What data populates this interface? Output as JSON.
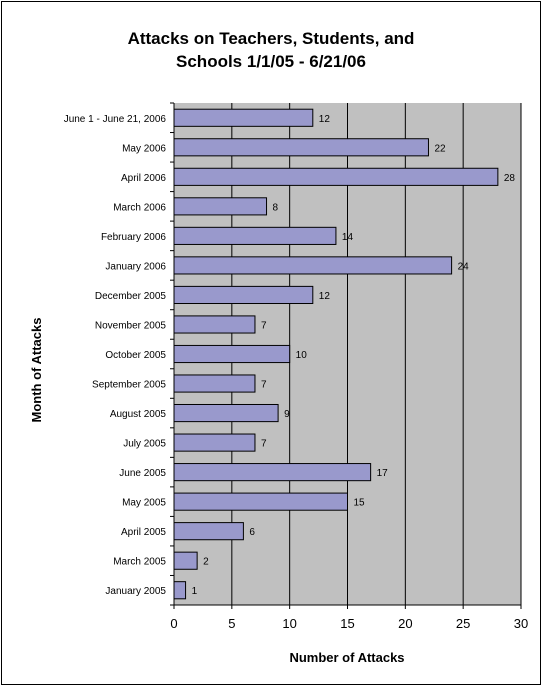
{
  "chart_data": {
    "type": "bar",
    "orientation": "horizontal",
    "title": "Attacks on Teachers, Students, and Schools 1/1/05 - 6/21/06",
    "title_lines": [
      "Attacks on Teachers, Students, and",
      "Schools 1/1/05 - 6/21/06"
    ],
    "xlabel": "Number of Attacks",
    "ylabel": "Month of Attacks",
    "xlim": [
      0,
      30
    ],
    "xticks": [
      0,
      5,
      10,
      15,
      20,
      25,
      30
    ],
    "grid": true,
    "legend": "none",
    "categories": [
      "June 1 - June 21, 2006",
      "May 2006",
      "April 2006",
      "March 2006",
      "February 2006",
      "January 2006",
      "December 2005",
      "November 2005",
      "October 2005",
      "September 2005",
      "August 2005",
      "July 2005",
      "June 2005",
      "May 2005",
      "April 2005",
      "March 2005",
      "January 2005"
    ],
    "values": [
      12,
      22,
      28,
      8,
      14,
      24,
      12,
      7,
      10,
      7,
      9,
      7,
      17,
      15,
      6,
      2,
      1
    ],
    "colors": {
      "bar_fill": "#9999cc",
      "bar_stroke": "#000000",
      "plot_background": "#c0c0c0",
      "gridline": "#000000"
    }
  }
}
